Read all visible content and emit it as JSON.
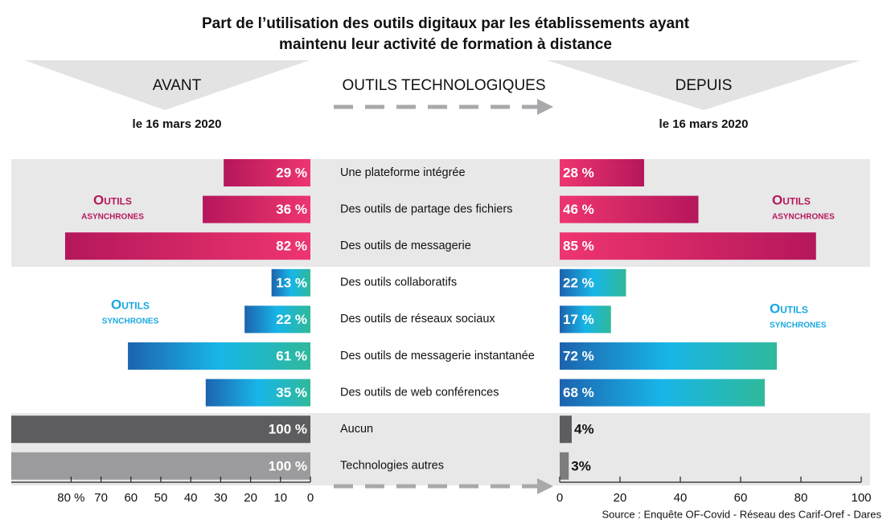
{
  "chart_data": {
    "type": "bar",
    "title": [
      "Part de l’utilisation des outils digitaux par les établissements ayant",
      "maintenu leur activité de formation à distance"
    ],
    "center_header": "OUTILS TECHNOLOGIQUES",
    "categories": [
      "Une plateforme intégrée",
      "Des outils de partage des fichiers",
      "Des outils de messagerie",
      "Des outils collaboratifs",
      "Des outils de réseaux sociaux",
      "Des outils de messagerie instantanée",
      "Des outils de web conférences",
      "Aucun",
      "Technologies autres"
    ],
    "series": [
      {
        "name": "AVANT",
        "subtitle": "le 16 mars 2020",
        "values": [
          29,
          36,
          82,
          13,
          22,
          61,
          35,
          100,
          100
        ],
        "value_labels": [
          "29 %",
          "36 %",
          "82 %",
          "13 %",
          "22 %",
          "61 %",
          "35 %",
          "100 %",
          "100 %"
        ],
        "colors": [
          [
            "#b5175b",
            "#ee3570"
          ],
          [
            "#b5175b",
            "#ee3570"
          ],
          [
            "#b5175b",
            "#ee3570"
          ],
          [
            "#1d63ae",
            "#18b6e8",
            "#2fb99a"
          ],
          [
            "#1d63ae",
            "#18b6e8",
            "#2fb99a"
          ],
          [
            "#1d63ae",
            "#18b6e8",
            "#2fb99a"
          ],
          [
            "#1d63ae",
            "#18b6e8",
            "#2fb99a"
          ],
          [
            "#5d5d5f"
          ],
          [
            "#9b9b9d"
          ]
        ],
        "xlim": [
          0,
          100
        ],
        "xticks": [
          {
            "value": 80,
            "label": "80 %"
          },
          70,
          60,
          50,
          40,
          30,
          20,
          10,
          0
        ]
      },
      {
        "name": "DEPUIS",
        "subtitle": "le 16 mars 2020",
        "values": [
          28,
          46,
          85,
          22,
          17,
          72,
          68,
          4,
          3
        ],
        "value_labels": [
          "28 %",
          "46 %",
          "85 %",
          "22 %",
          "17 %",
          "72 %",
          "68 %",
          "4%",
          "3%"
        ],
        "colors": [
          [
            "#ee3570",
            "#b5175b"
          ],
          [
            "#ee3570",
            "#b5175b"
          ],
          [
            "#ee3570",
            "#b5175b"
          ],
          [
            "#1d63ae",
            "#18b6e8",
            "#2fb99a"
          ],
          [
            "#1d63ae",
            "#18b6e8",
            "#2fb99a"
          ],
          [
            "#1d63ae",
            "#18b6e8",
            "#2fb99a"
          ],
          [
            "#1d63ae",
            "#18b6e8",
            "#2fb99a"
          ],
          [
            "#5d5d5f"
          ],
          [
            "#7d7d7f"
          ]
        ],
        "xlim": [
          0,
          100
        ],
        "xticks": [
          0,
          20,
          40,
          60,
          80,
          100
        ]
      }
    ],
    "groups": [
      {
        "label": [
          "Outils",
          "asynchrones"
        ],
        "color": "#b5175b"
      },
      {
        "label": [
          "Outils",
          "synchrones"
        ],
        "color": "#1aa8e0"
      }
    ],
    "source": "Source : Enquête OF-Covid - Réseau des Carif-Oref - Dares"
  }
}
